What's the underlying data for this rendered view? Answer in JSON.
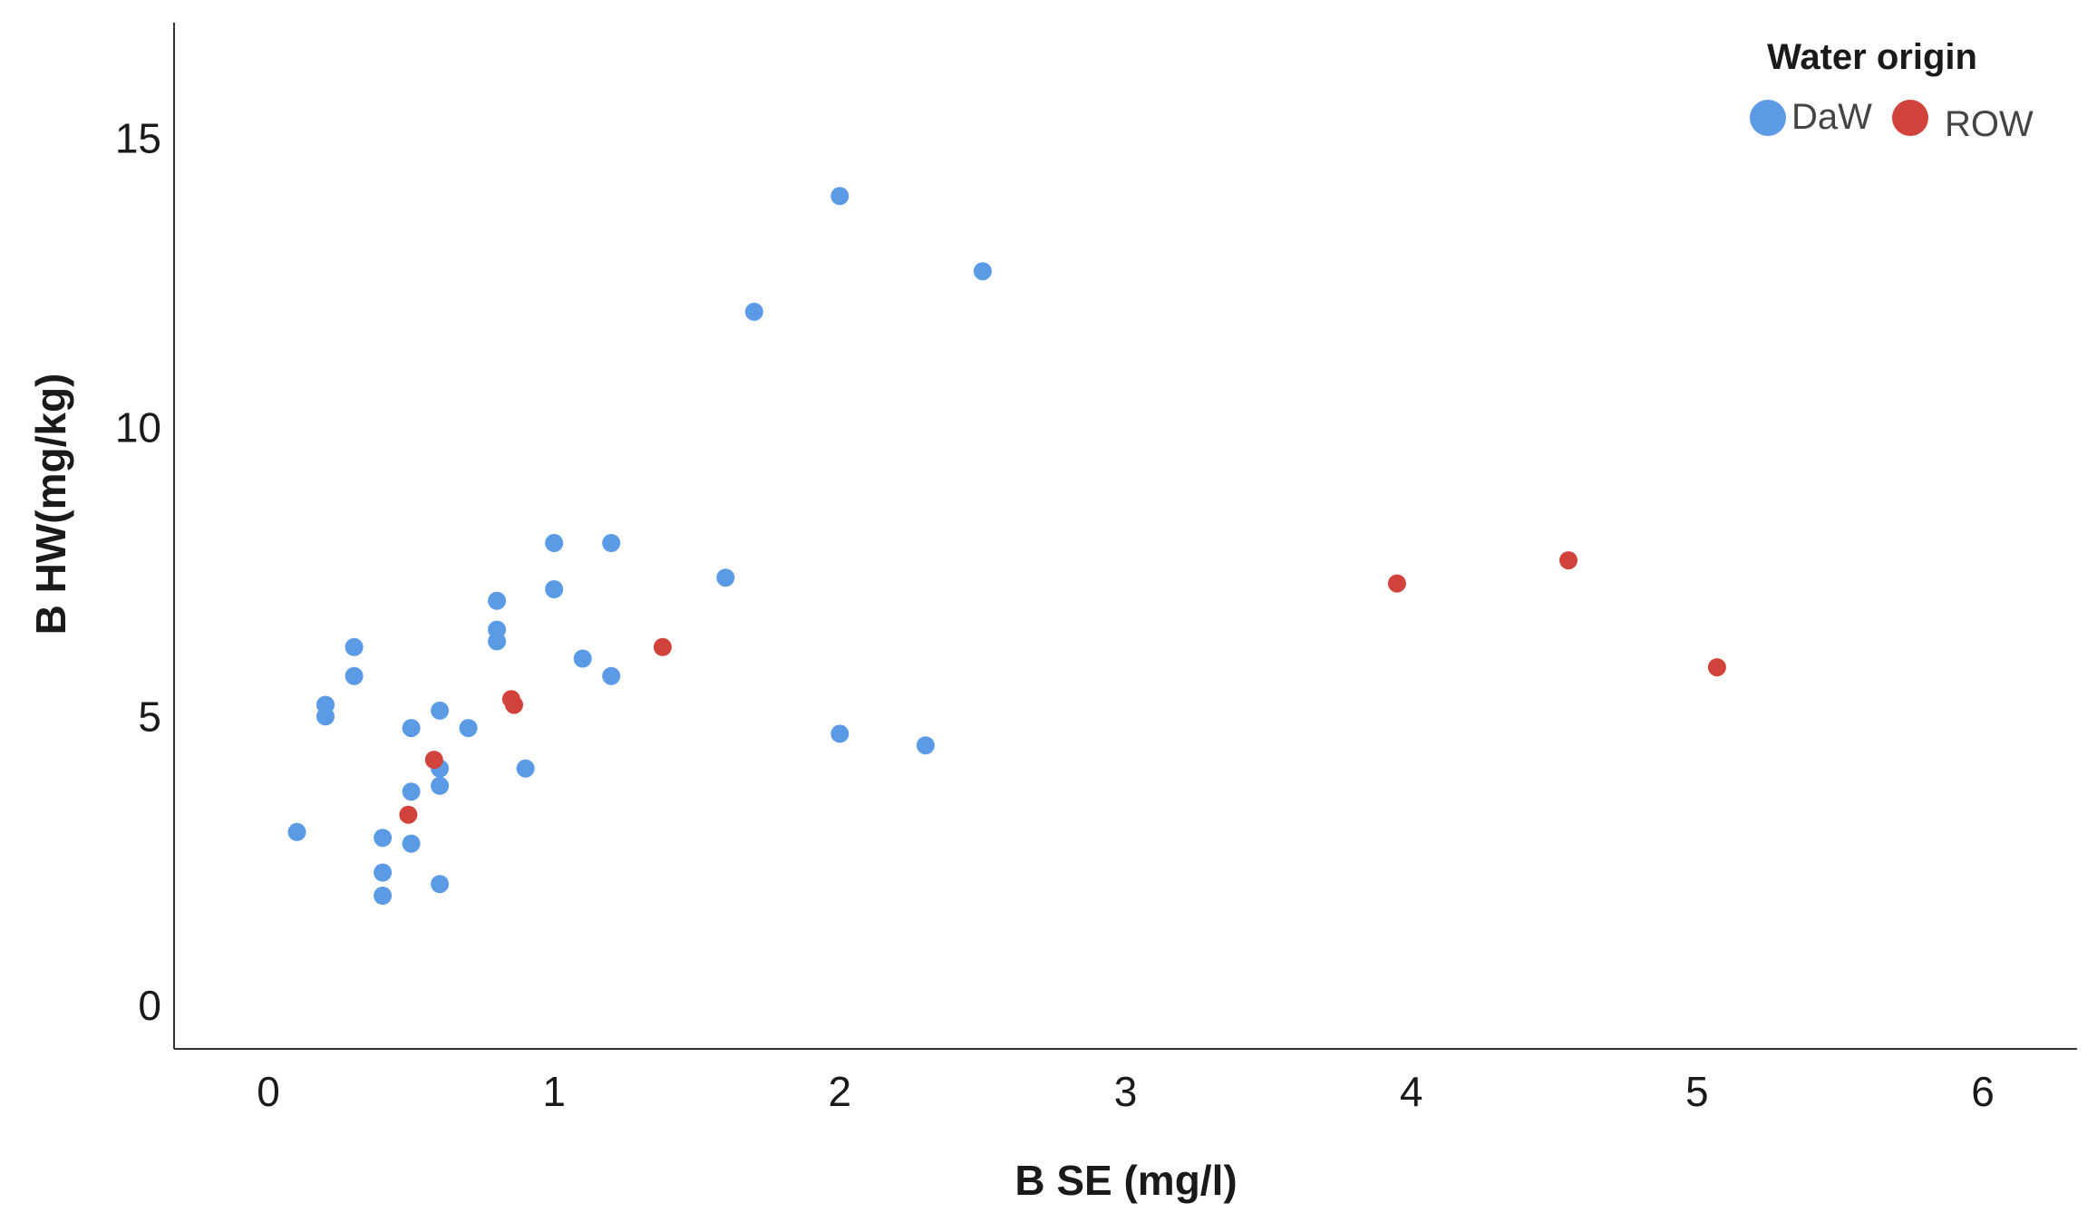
{
  "chart_data": {
    "type": "scatter",
    "xlabel": "B SE (mg/l)",
    "ylabel": "B HW(mg/kg)",
    "xlim": [
      -0.33,
      6.33
    ],
    "ylim": [
      -0.75,
      17.0
    ],
    "x_ticks": [
      0,
      1,
      2,
      3,
      4,
      5,
      6
    ],
    "y_ticks": [
      0,
      5,
      10,
      15
    ],
    "grid": false,
    "legend": {
      "title": "Water origin",
      "position": "top-right"
    },
    "series": [
      {
        "name": "DaW",
        "color": "#5b9be6",
        "points": [
          [
            0.1,
            3.0
          ],
          [
            0.2,
            5.2
          ],
          [
            0.2,
            5.0
          ],
          [
            0.3,
            6.2
          ],
          [
            0.3,
            5.7
          ],
          [
            0.4,
            2.9
          ],
          [
            0.4,
            2.3
          ],
          [
            0.4,
            1.9
          ],
          [
            0.5,
            4.8
          ],
          [
            0.5,
            3.7
          ],
          [
            0.5,
            2.8
          ],
          [
            0.6,
            5.1
          ],
          [
            0.6,
            4.1
          ],
          [
            0.6,
            3.8
          ],
          [
            0.6,
            2.1
          ],
          [
            0.7,
            4.8
          ],
          [
            0.8,
            7.0
          ],
          [
            0.8,
            6.5
          ],
          [
            0.8,
            6.3
          ],
          [
            0.9,
            4.1
          ],
          [
            1.0,
            8.0
          ],
          [
            1.0,
            7.2
          ],
          [
            1.1,
            6.0
          ],
          [
            1.2,
            8.0
          ],
          [
            1.2,
            5.7
          ],
          [
            1.6,
            7.4
          ],
          [
            1.7,
            12.0
          ],
          [
            2.0,
            14.0
          ],
          [
            2.0,
            4.7
          ],
          [
            2.3,
            4.5
          ],
          [
            2.5,
            12.7
          ]
        ]
      },
      {
        "name": "ROW",
        "color": "#d1433a",
        "points": [
          [
            0.49,
            3.3
          ],
          [
            0.58,
            4.25
          ],
          [
            0.85,
            5.3
          ],
          [
            0.86,
            5.2
          ],
          [
            1.38,
            6.2
          ],
          [
            3.95,
            7.3
          ],
          [
            4.55,
            7.7
          ],
          [
            5.07,
            5.85
          ]
        ]
      }
    ]
  }
}
